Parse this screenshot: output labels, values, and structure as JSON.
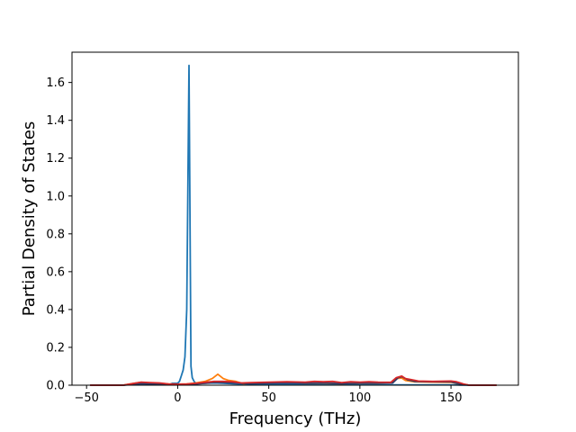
{
  "chart_data": {
    "type": "line",
    "title": "",
    "xlabel": "Frequency (THz)",
    "ylabel": "Partial Density of States",
    "xlim": [
      -58,
      187
    ],
    "ylim": [
      0,
      1.76
    ],
    "xticks": [
      -50,
      0,
      50,
      100,
      150
    ],
    "xtick_labels": [
      "−50",
      "0",
      "50",
      "100",
      "150"
    ],
    "yticks": [
      0,
      0.2,
      0.4,
      0.6,
      0.8,
      1.0,
      1.2,
      1.4,
      1.6
    ],
    "ytick_labels": [
      "0.0",
      "0.2",
      "0.4",
      "0.6",
      "0.8",
      "1.0",
      "1.2",
      "1.4",
      "1.6"
    ],
    "grid": false,
    "legend": "none",
    "series": [
      {
        "color": "#1f77b4",
        "points": [
          [
            -48,
            0
          ],
          [
            -30,
            0
          ],
          [
            -25,
            0.005
          ],
          [
            -20,
            0.008
          ],
          [
            -15,
            0.006
          ],
          [
            -10,
            0.004
          ],
          [
            -5,
            0.002
          ],
          [
            -3,
            0.01
          ],
          [
            0,
            0.01
          ],
          [
            1,
            0.02
          ],
          [
            2,
            0.05
          ],
          [
            3,
            0.08
          ],
          [
            4,
            0.15
          ],
          [
            5,
            0.4
          ],
          [
            6.2,
            1.69
          ],
          [
            7.3,
            0.1
          ],
          [
            8,
            0.04
          ],
          [
            9,
            0.02
          ],
          [
            10,
            0.01
          ],
          [
            15,
            0.01
          ],
          [
            20,
            0.012
          ],
          [
            25,
            0.01
          ],
          [
            30,
            0.008
          ],
          [
            35,
            0.006
          ],
          [
            40,
            0.005
          ],
          [
            50,
            0.004
          ],
          [
            60,
            0.004
          ],
          [
            70,
            0.003
          ],
          [
            80,
            0.003
          ],
          [
            90,
            0.003
          ],
          [
            100,
            0.002
          ],
          [
            110,
            0.002
          ],
          [
            120,
            0.002
          ],
          [
            130,
            0.002
          ],
          [
            140,
            0.002
          ],
          [
            150,
            0.002
          ],
          [
            155,
            0.001
          ],
          [
            160,
            0
          ],
          [
            175,
            0
          ]
        ]
      },
      {
        "color": "#ff7f0e",
        "points": [
          [
            -48,
            0
          ],
          [
            -30,
            0
          ],
          [
            -25,
            0.008
          ],
          [
            -20,
            0.015
          ],
          [
            -15,
            0.012
          ],
          [
            -10,
            0.01
          ],
          [
            -5,
            0.006
          ],
          [
            0,
            0.005
          ],
          [
            5,
            0.006
          ],
          [
            10,
            0.012
          ],
          [
            15,
            0.02
          ],
          [
            19,
            0.035
          ],
          [
            22,
            0.058
          ],
          [
            25,
            0.035
          ],
          [
            28,
            0.025
          ],
          [
            32,
            0.02
          ],
          [
            36,
            0.008
          ],
          [
            40,
            0.01
          ],
          [
            50,
            0.012
          ],
          [
            60,
            0.014
          ],
          [
            70,
            0.01
          ],
          [
            80,
            0.01
          ],
          [
            90,
            0.008
          ],
          [
            100,
            0.01
          ],
          [
            110,
            0.01
          ],
          [
            117,
            0.012
          ],
          [
            120,
            0.035
          ],
          [
            123,
            0.038
          ],
          [
            125,
            0.025
          ],
          [
            130,
            0.018
          ],
          [
            140,
            0.016
          ],
          [
            150,
            0.015
          ],
          [
            155,
            0.006
          ],
          [
            160,
            0
          ],
          [
            175,
            0
          ]
        ]
      },
      {
        "color": "#2b3a67",
        "points": [
          [
            -48,
            0
          ],
          [
            -30,
            0
          ],
          [
            -25,
            0.004
          ],
          [
            -20,
            0.008
          ],
          [
            -15,
            0.006
          ],
          [
            -10,
            0.004
          ],
          [
            -5,
            0.003
          ],
          [
            0,
            0.003
          ],
          [
            5,
            0.004
          ],
          [
            10,
            0.006
          ],
          [
            15,
            0.01
          ],
          [
            20,
            0.015
          ],
          [
            25,
            0.014
          ],
          [
            30,
            0.012
          ],
          [
            35,
            0.01
          ],
          [
            40,
            0.008
          ],
          [
            50,
            0.01
          ],
          [
            60,
            0.012
          ],
          [
            70,
            0.01
          ],
          [
            80,
            0.012
          ],
          [
            90,
            0.008
          ],
          [
            100,
            0.01
          ],
          [
            110,
            0.01
          ],
          [
            118,
            0.012
          ],
          [
            121,
            0.04
          ],
          [
            123,
            0.045
          ],
          [
            126,
            0.03
          ],
          [
            130,
            0.02
          ],
          [
            140,
            0.018
          ],
          [
            150,
            0.018
          ],
          [
            155,
            0.006
          ],
          [
            160,
            0
          ],
          [
            175,
            0
          ]
        ]
      },
      {
        "color": "#d62728",
        "points": [
          [
            -48,
            0
          ],
          [
            -30,
            0
          ],
          [
            -25,
            0.008
          ],
          [
            -20,
            0.016
          ],
          [
            -15,
            0.014
          ],
          [
            -10,
            0.012
          ],
          [
            -5,
            0.006
          ],
          [
            0,
            0.005
          ],
          [
            5,
            0.006
          ],
          [
            10,
            0.01
          ],
          [
            15,
            0.015
          ],
          [
            20,
            0.02
          ],
          [
            25,
            0.02
          ],
          [
            30,
            0.018
          ],
          [
            35,
            0.012
          ],
          [
            40,
            0.014
          ],
          [
            50,
            0.016
          ],
          [
            60,
            0.018
          ],
          [
            70,
            0.016
          ],
          [
            75,
            0.02
          ],
          [
            80,
            0.018
          ],
          [
            85,
            0.02
          ],
          [
            90,
            0.014
          ],
          [
            95,
            0.018
          ],
          [
            100,
            0.016
          ],
          [
            105,
            0.018
          ],
          [
            110,
            0.016
          ],
          [
            117,
            0.015
          ],
          [
            120,
            0.04
          ],
          [
            123,
            0.048
          ],
          [
            125,
            0.035
          ],
          [
            128,
            0.03
          ],
          [
            132,
            0.022
          ],
          [
            140,
            0.02
          ],
          [
            150,
            0.022
          ],
          [
            153,
            0.018
          ],
          [
            157,
            0.006
          ],
          [
            160,
            0
          ],
          [
            175,
            0
          ]
        ]
      }
    ]
  }
}
